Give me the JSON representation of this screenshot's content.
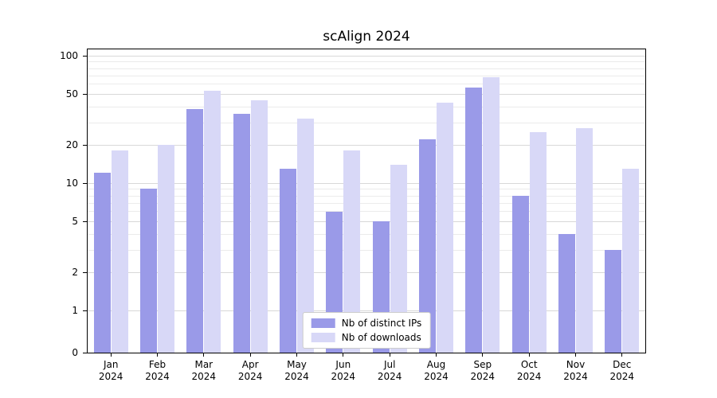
{
  "title": "scAlign 2024",
  "chart_data": {
    "type": "bar",
    "title": "scAlign 2024",
    "x_months": [
      "Jan",
      "Feb",
      "Mar",
      "Apr",
      "May",
      "Jun",
      "Jul",
      "Aug",
      "Sep",
      "Oct",
      "Nov",
      "Dec"
    ],
    "x_year": "2024",
    "series": [
      {
        "name": "Nb of distinct IPs",
        "color": "#9a9ae8",
        "values": [
          12,
          9,
          38,
          35,
          13,
          6,
          5,
          22,
          56,
          8,
          4,
          3
        ]
      },
      {
        "name": "Nb of downloads",
        "color": "#d8d8f7",
        "values": [
          18,
          20,
          53,
          45,
          32,
          18,
          14,
          43,
          68,
          25,
          27,
          13
        ]
      }
    ],
    "y_scale": "symlog",
    "y_ticks": [
      0,
      1,
      2,
      5,
      10,
      20,
      50,
      100
    ],
    "y_minor_ticks": [
      3,
      4,
      6,
      7,
      8,
      9,
      30,
      40,
      60,
      70,
      80,
      90
    ],
    "ylim": [
      0,
      112
    ],
    "grid": "horizontal",
    "legend_position": "lower center",
    "xlabel": "",
    "ylabel": ""
  }
}
